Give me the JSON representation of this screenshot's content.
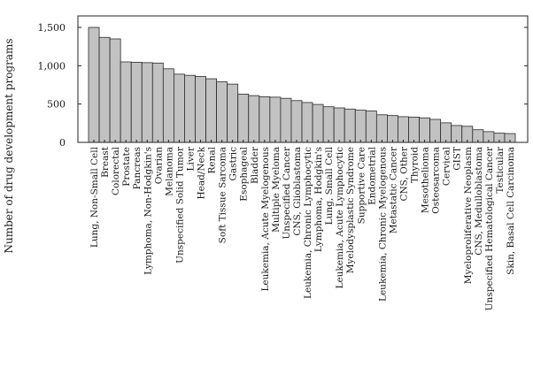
{
  "chart_data": {
    "type": "bar",
    "ylabel": "Number of drug development programs",
    "ylim": [
      0,
      1650
    ],
    "yticks": [
      0,
      500,
      1000,
      1500
    ],
    "ytick_labels": [
      "0",
      "500",
      "1,000",
      "1,500"
    ],
    "grid": false,
    "colors": {
      "bar_fill": "#c2c2c2",
      "bar_stroke": "#2a2a2a"
    },
    "categories": [
      "Lung, Non-Small Cell",
      "Breast",
      "Colorectal",
      "Prostate",
      "Pancreas",
      "Lymphoma, Non-Hodgkin's",
      "Ovarian",
      "Melanoma",
      "Unspecified Solid Tumor",
      "Liver",
      "Head/Neck",
      "Renal",
      "Soft Tissue Sarcoma",
      "Gastric",
      "Esophageal",
      "Bladder",
      "Leukemia, Acute Myelogenous",
      "Multiple Myeloma",
      "Unspecified Cancer",
      "CNS, Glioblastoma",
      "Leukemia, Chronic Lymphocytic",
      "Lymphoma, Hodgkin's",
      "Lung, Small Cell",
      "Leukemia, Acute Lymphocytic",
      "Myelodysplastic Syndrome",
      "Supportive Care",
      "Endometrial",
      "Leukemia, Chronic Myelogenous",
      "Metastatic Cancer",
      "CNS, Other",
      "Thyroid",
      "Mesothelioma",
      "Osteosarcoma",
      "Cervical",
      "GIST",
      "Myeloproliferative Neoplasm",
      "CNS, Medulloblastoma",
      "Unspecified Hematological Cancer",
      "Testicular",
      "Skin, Basal Cell Carcinoma"
    ],
    "values": [
      1500,
      1370,
      1350,
      1050,
      1045,
      1040,
      1035,
      960,
      890,
      875,
      860,
      830,
      790,
      760,
      630,
      610,
      595,
      590,
      575,
      545,
      520,
      495,
      465,
      450,
      435,
      420,
      410,
      360,
      350,
      335,
      330,
      320,
      300,
      255,
      220,
      210,
      165,
      140,
      120,
      115
    ]
  }
}
